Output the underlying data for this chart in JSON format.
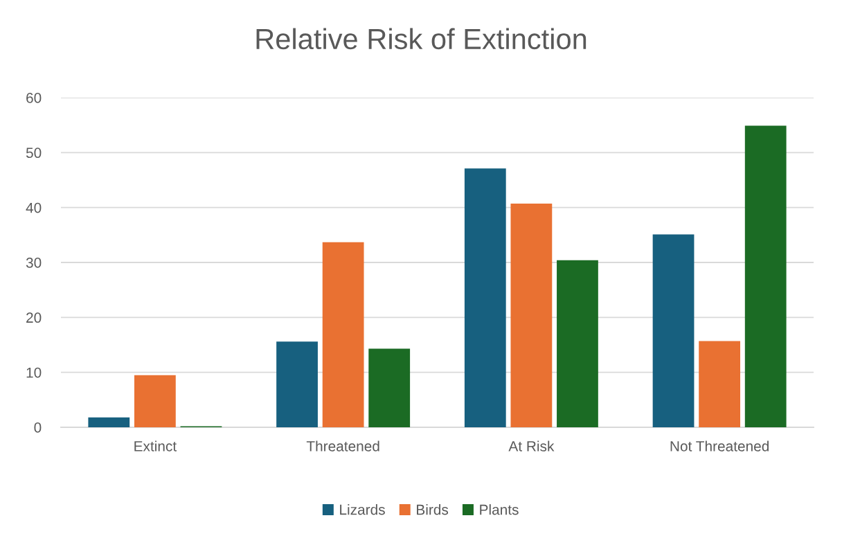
{
  "chart_data": {
    "type": "bar",
    "title": "Relative Risk of Extinction",
    "categories": [
      "Extinct",
      "Threatened",
      "At Risk",
      "Not Threatened"
    ],
    "series": [
      {
        "name": "Lizards",
        "color": "#17607f",
        "values": [
          1.8,
          15.6,
          47.1,
          35.1
        ]
      },
      {
        "name": "Birds",
        "color": "#e97132",
        "values": [
          9.5,
          33.7,
          40.7,
          15.7
        ]
      },
      {
        "name": "Plants",
        "color": "#1b6b24",
        "values": [
          0.2,
          14.3,
          30.4,
          54.9
        ]
      }
    ],
    "ylim": [
      0,
      60
    ],
    "yticks": [
      0,
      10,
      20,
      30,
      40,
      50,
      60
    ],
    "grid": "y",
    "legend": "bottom"
  }
}
